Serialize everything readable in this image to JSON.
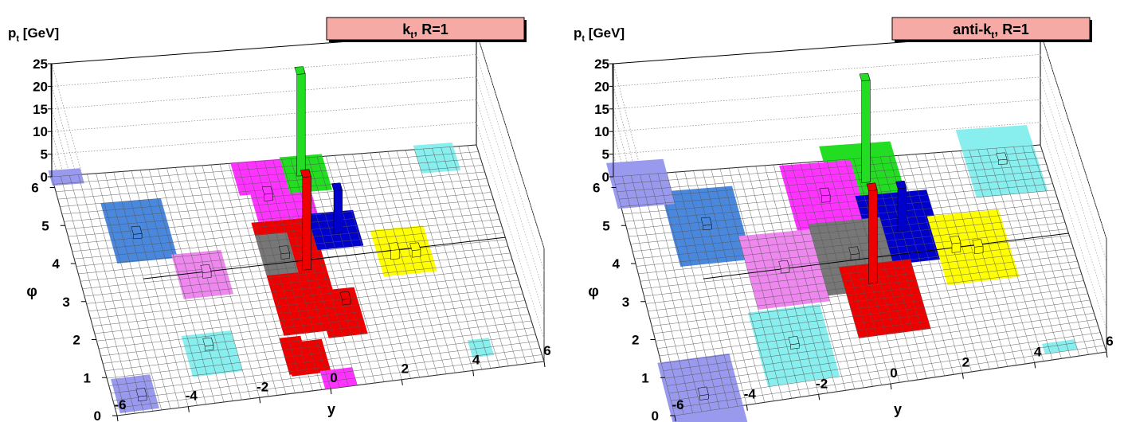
{
  "chart_data": [
    {
      "type": "lego3d",
      "title": "k_t, R=1",
      "title_main": "k",
      "title_sub": "t",
      "title_rest": ", R=1",
      "xlabel": "y",
      "ylabel": "φ",
      "zlabel_main": "p",
      "zlabel_sub": "t",
      "zlabel_rest": " [GeV]",
      "xlim": [
        -6,
        6
      ],
      "ylim": [
        0,
        6.283
      ],
      "zlim": [
        0,
        25
      ],
      "x_ticks": [
        "-6",
        "-4",
        "-2",
        "0",
        "2",
        "4",
        "6"
      ],
      "y_ticks": [
        "0",
        "1",
        "2",
        "3",
        "4",
        "5",
        "6"
      ],
      "z_ticks": [
        "0",
        "5",
        "10",
        "15",
        "20",
        "25"
      ],
      "grid": true,
      "legend": "none",
      "jets": [
        {
          "color": "#ee0000",
          "cells": [
            [
              0.0,
              3.1,
              0.85,
              1.55
            ],
            [
              -0.4,
              0.9,
              0.55,
              0.45
            ],
            [
              0.9,
              2.0,
              0.55,
              0.65
            ],
            [
              -0.7,
              1.0,
              0.3,
              0.5
            ]
          ],
          "spikes": [
            {
              "y": 0.3,
              "phi": 3.35,
              "pt": 20.5
            },
            {
              "y": 1.1,
              "phi": 2.3,
              "pt": 1.2
            }
          ]
        },
        {
          "color": "#ff33ff",
          "cells": [
            [
              -0.2,
              5.85,
              0.75,
              0.45
            ],
            [
              0.2,
              5.1,
              0.85,
              0.45
            ],
            [
              0.3,
              0.25,
              0.45,
              0.25
            ]
          ],
          "spikes": [
            {
              "y": -0.2,
              "phi": 5.3,
              "pt": 1.5
            }
          ]
        },
        {
          "color": "#22dd22",
          "cells": [
            [
              1.05,
              5.85,
              0.6,
              0.5
            ]
          ],
          "spikes": [
            {
              "y": 0.9,
              "phi": 5.9,
              "pt": 22.5
            }
          ]
        },
        {
          "color": "#0000cc",
          "cells": [
            [
              1.4,
              4.25,
              0.65,
              0.5
            ]
          ],
          "spikes": [
            {
              "y": 1.45,
              "phi": 4.25,
              "pt": 9.5
            }
          ]
        },
        {
          "color": "#ffff00",
          "cells": [
            [
              3.1,
              3.5,
              0.75,
              0.65
            ]
          ],
          "spikes": [
            {
              "y": 3.4,
              "phi": 3.4,
              "pt": 1.5
            },
            {
              "y": 2.8,
              "phi": 3.4,
              "pt": 2.0
            }
          ]
        },
        {
          "color": "#777777",
          "cells": [
            [
              -0.4,
              3.75,
              0.45,
              0.55
            ]
          ],
          "spikes": [
            {
              "y": -0.2,
              "phi": 3.7,
              "pt": 1.2
            }
          ]
        },
        {
          "color": "#4a88dd",
          "cells": [
            [
              -4.0,
              4.7,
              0.85,
              0.8
            ]
          ],
          "spikes": [
            {
              "y": -4.1,
              "phi": 4.6,
              "pt": 1.0
            }
          ]
        },
        {
          "color": "#ee88ee",
          "cells": [
            [
              -2.6,
              3.4,
              0.7,
              0.6
            ]
          ],
          "spikes": [
            {
              "y": -2.5,
              "phi": 3.4,
              "pt": 1.2
            }
          ]
        },
        {
          "color": "#88eeee",
          "cells": [
            [
              -2.95,
              1.3,
              0.7,
              0.55
            ],
            [
              4.4,
              0.6,
              0.3,
              0.25
            ],
            [
              4.8,
              6.0,
              0.55,
              0.4
            ]
          ],
          "spikes": [
            {
              "y": -3.0,
              "phi": 1.5,
              "pt": 1.0
            }
          ]
        },
        {
          "color": "#9999ee",
          "cells": [
            [
              -5.35,
              0.5,
              0.55,
              0.45
            ],
            [
              -5.6,
              6.25,
              0.45,
              0.2
            ]
          ],
          "spikes": [
            {
              "y": -5.2,
              "phi": 0.4,
              "pt": 1.0
            }
          ]
        }
      ]
    },
    {
      "type": "lego3d",
      "title": "anti-k_t, R=1",
      "title_main": "anti-k",
      "title_sub": "t",
      "title_rest": ", R=1",
      "xlabel": "y",
      "ylabel": "φ",
      "zlabel_main": "p",
      "zlabel_sub": "t",
      "zlabel_rest": " [GeV]",
      "xlim": [
        -6,
        6
      ],
      "ylim": [
        0,
        6.283
      ],
      "zlim": [
        0,
        25
      ],
      "x_ticks": [
        "-6",
        "-4",
        "-2",
        "0",
        "2",
        "4",
        "6"
      ],
      "y_ticks": [
        "0",
        "1",
        "2",
        "3",
        "4",
        "5",
        "6"
      ],
      "z_ticks": [
        "0",
        "5",
        "10",
        "15",
        "20",
        "25"
      ],
      "grid": true,
      "legend": "none",
      "jets": [
        {
          "color": "#22dd22",
          "cells": [
            [
              0.9,
              5.7,
              1.0,
              1.0
            ]
          ],
          "spikes": [
            {
              "y": 0.9,
              "phi": 5.7,
              "pt": 22.5
            }
          ]
        },
        {
          "color": "#ff33ff",
          "cells": [
            [
              -0.35,
              5.25,
              1.0,
              1.0
            ]
          ],
          "spikes": [
            {
              "y": -0.35,
              "phi": 5.25,
              "pt": 1.5
            }
          ]
        },
        {
          "color": "#0000cc",
          "cells": [
            [
              1.5,
              4.25,
              1.0,
              1.0
            ]
          ],
          "spikes": [
            {
              "y": 1.5,
              "phi": 4.25,
              "pt": 9.5
            }
          ]
        },
        {
          "color": "#777777",
          "cells": [
            [
              0.0,
              3.6,
              1.0,
              1.0
            ]
          ],
          "spikes": [
            {
              "y": 0.0,
              "phi": 3.6,
              "pt": 1.2
            }
          ]
        },
        {
          "color": "#ee0000",
          "cells": [
            [
              0.5,
              2.35,
              1.0,
              1.0
            ]
          ],
          "spikes": [
            {
              "y": 0.3,
              "phi": 2.9,
              "pt": 20.5
            }
          ]
        },
        {
          "color": "#ffff00",
          "cells": [
            [
              3.3,
              3.5,
              1.0,
              1.0
            ]
          ],
          "spikes": [
            {
              "y": 3.4,
              "phi": 3.4,
              "pt": 1.5
            },
            {
              "y": 2.8,
              "phi": 3.5,
              "pt": 2.0
            }
          ]
        },
        {
          "color": "#4a88dd",
          "cells": [
            [
              -3.8,
              4.8,
              1.0,
              1.0
            ]
          ],
          "spikes": [
            {
              "y": -3.8,
              "phi": 4.8,
              "pt": 1.0
            }
          ]
        },
        {
          "color": "#ee88ee",
          "cells": [
            [
              -2.0,
              3.45,
              1.0,
              1.0
            ]
          ],
          "spikes": [
            {
              "y": -2.0,
              "phi": 3.45,
              "pt": 1.0
            }
          ]
        },
        {
          "color": "#88eeee",
          "cells": [
            [
              -2.3,
              1.4,
              1.0,
              1.0
            ],
            [
              4.8,
              5.9,
              1.0,
              1.0
            ],
            [
              4.8,
              0.35,
              0.45,
              0.15
            ]
          ],
          "spikes": [
            {
              "y": -2.3,
              "phi": 1.4,
              "pt": 1.0
            },
            {
              "y": 4.8,
              "phi": 5.9,
              "pt": 1.0
            }
          ]
        },
        {
          "color": "#9999ee",
          "cells": [
            [
              -5.1,
              0.4,
              1.0,
              1.0
            ],
            [
              -5.3,
              6.05,
              0.8,
              0.6
            ]
          ],
          "spikes": [
            {
              "y": -5.1,
              "phi": 0.4,
              "pt": 1.0
            }
          ]
        }
      ]
    }
  ]
}
